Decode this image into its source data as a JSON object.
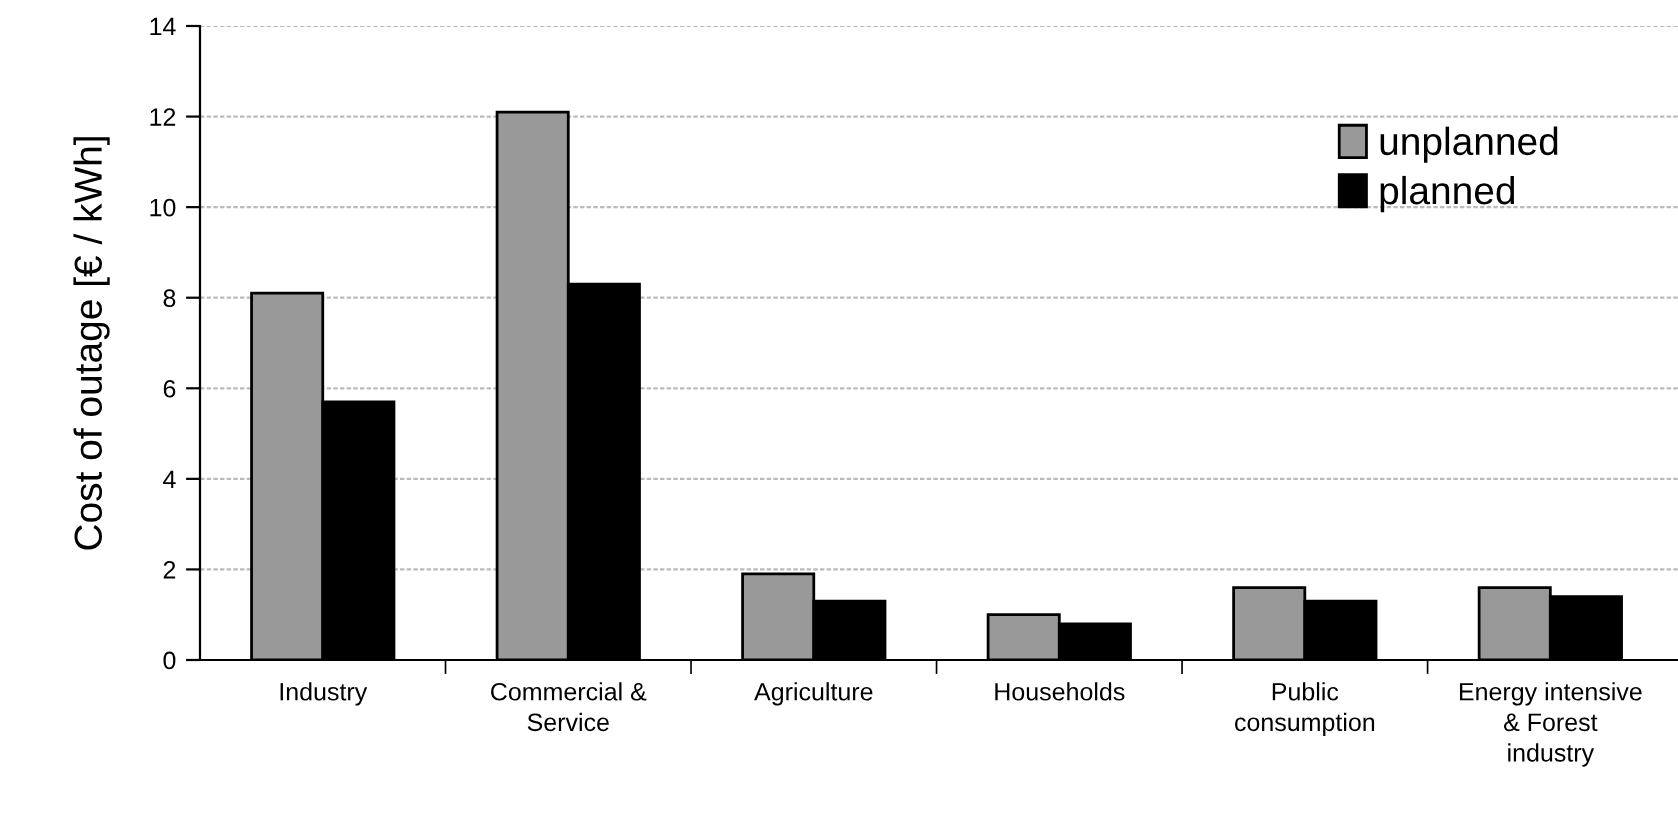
{
  "chart_data": {
    "type": "bar",
    "ylabel": "Cost of outage [€ / kWh]",
    "categories": [
      "Industry",
      "Commercial &\nService",
      "Agriculture",
      "Households",
      "Public\nconsumption",
      "Energy intensive\n& Forest\nindustry"
    ],
    "series": [
      {
        "name": "unplanned",
        "color": "#999999",
        "values": [
          8.1,
          12.1,
          1.9,
          1.0,
          1.6,
          1.6
        ]
      },
      {
        "name": "planned",
        "color": "#000000",
        "values": [
          5.7,
          8.3,
          1.3,
          0.8,
          1.3,
          1.4
        ]
      }
    ],
    "ylim": [
      0,
      14
    ],
    "yticks": [
      0,
      2,
      4,
      6,
      8,
      10,
      12,
      14
    ],
    "grid": "y",
    "legend": "top right"
  }
}
